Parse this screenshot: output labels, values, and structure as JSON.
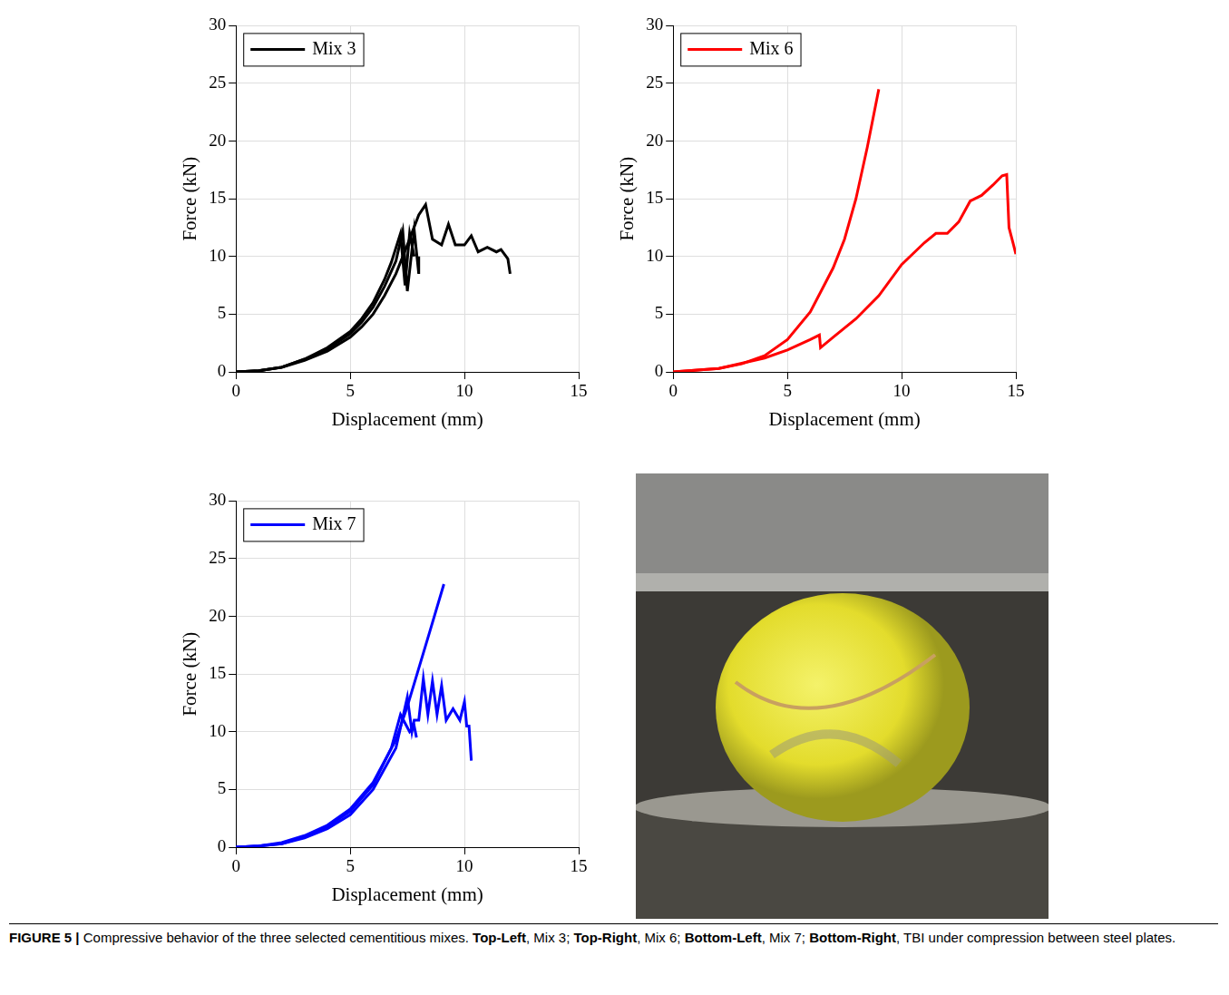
{
  "chart_data": [
    {
      "type": "line",
      "x_label": "Displacement (mm)",
      "y_label": "Force (kN)",
      "xlim": [
        0,
        15
      ],
      "xticks": [
        0,
        5,
        10,
        15
      ],
      "ylim": [
        0,
        30
      ],
      "yticks": [
        0,
        5,
        10,
        15,
        20,
        25,
        30
      ],
      "grid": true,
      "legend": "upper left",
      "series": [
        {
          "name": "Mix 3",
          "color": "#000000",
          "x": [
            0,
            1,
            2,
            3,
            4,
            5,
            5.5,
            6,
            6.5,
            7,
            7.5,
            8,
            8.3,
            8.6,
            9,
            9.3,
            9.6,
            10,
            10.3,
            10.6,
            11,
            11.4,
            11.6,
            11.9,
            12,
            null,
            0,
            1,
            2,
            3,
            4,
            5,
            5.5,
            6,
            6.5,
            7,
            7.3,
            7.5,
            7.8,
            8,
            8,
            null,
            0,
            1,
            2,
            3,
            4,
            5,
            5.5,
            6,
            6.5,
            6.8,
            7.2,
            7.4,
            7.6,
            7.8
          ],
          "values": [
            0,
            0.1,
            0.4,
            1,
            1.8,
            3,
            3.9,
            5,
            6.6,
            8.5,
            11,
            13.6,
            14.5,
            11.5,
            11,
            12.8,
            11,
            11,
            11.8,
            10.4,
            10.8,
            10.4,
            10.6,
            9.8,
            8.5,
            null,
            0,
            0.1,
            0.4,
            1.1,
            2,
            3.3,
            4.3,
            5.6,
            7.4,
            9.6,
            12.2,
            7,
            12.3,
            8.5,
            10,
            null,
            0,
            0.1,
            0.4,
            1.1,
            2.1,
            3.5,
            4.6,
            6,
            8,
            9.5,
            12,
            7.5,
            12,
            10
          ]
        }
      ]
    },
    {
      "type": "line",
      "x_label": "Displacement (mm)",
      "y_label": "Force (kN)",
      "xlim": [
        0,
        15
      ],
      "xticks": [
        0,
        5,
        10,
        15
      ],
      "ylim": [
        0,
        30
      ],
      "yticks": [
        0,
        5,
        10,
        15,
        20,
        25,
        30
      ],
      "grid": true,
      "legend": "upper left",
      "series": [
        {
          "name": "Mix 6",
          "color": "#ff0000",
          "x": [
            0,
            2,
            3,
            4,
            5,
            6,
            7,
            7.5,
            8,
            8.5,
            9,
            null,
            0,
            2,
            4,
            5,
            6,
            6.4,
            6.45,
            7,
            8,
            9,
            10,
            11,
            11.5,
            12,
            12.5,
            13,
            13.5,
            14,
            14.4,
            14.6,
            14.7,
            14.9,
            15
          ],
          "values": [
            0,
            0.3,
            0.7,
            1.4,
            2.8,
            5.2,
            9,
            11.5,
            15,
            19.5,
            24.5,
            null,
            0,
            0.3,
            1.2,
            1.9,
            2.8,
            3.2,
            2.1,
            3,
            4.6,
            6.6,
            9.3,
            11.2,
            12,
            12,
            13,
            14.8,
            15.3,
            16.2,
            17,
            17.1,
            12.5,
            11,
            10.2
          ]
        }
      ]
    },
    {
      "type": "line",
      "x_label": "Displacement (mm)",
      "y_label": "Force (kN)",
      "xlim": [
        0,
        15
      ],
      "xticks": [
        0,
        5,
        10,
        15
      ],
      "ylim": [
        0,
        30
      ],
      "yticks": [
        0,
        5,
        10,
        15,
        20,
        25,
        30
      ],
      "grid": true,
      "legend": "upper left",
      "series": [
        {
          "name": "Mix 7",
          "color": "#0000ff",
          "x": [
            0,
            1,
            2,
            3,
            4,
            5,
            6,
            7,
            7.5,
            8,
            8.5,
            9.1,
            null,
            0,
            1,
            2,
            3,
            4,
            5,
            6,
            7,
            7.5,
            7.7,
            7.8,
            8,
            8.2,
            8.4,
            8.6,
            8.8,
            9,
            9.2,
            9.5,
            9.8,
            10,
            10.1,
            10.2,
            10.3,
            null,
            0,
            1,
            2,
            3,
            4,
            5,
            6,
            6.8,
            7.2,
            7.6,
            7.8,
            7.9
          ],
          "values": [
            0,
            0.1,
            0.4,
            1,
            1.9,
            3.3,
            5.6,
            9.3,
            12.2,
            15.5,
            18.8,
            22.8,
            null,
            0,
            0.1,
            0.3,
            0.8,
            1.6,
            2.8,
            5,
            8.6,
            13,
            10,
            11,
            11,
            14.6,
            11.5,
            14.4,
            11.5,
            14,
            11,
            12,
            11,
            12.6,
            10.5,
            10.5,
            7.5,
            null,
            0,
            0.1,
            0.3,
            0.9,
            1.8,
            3.1,
            5.4,
            8.6,
            11.5,
            10,
            10.5,
            9.5
          ]
        }
      ]
    }
  ],
  "caption": [
    {
      "text": "FIGURE 5 |",
      "bold": true
    },
    {
      "text": " Compressive behavior of the three selected cementitious mixes. ",
      "bold": false
    },
    {
      "text": "Top-Left",
      "bold": true
    },
    {
      "text": ", Mix 3; ",
      "bold": false
    },
    {
      "text": "Top-Right",
      "bold": true
    },
    {
      "text": ", Mix 6; ",
      "bold": false
    },
    {
      "text": "Bottom-Left",
      "bold": true
    },
    {
      "text": ", Mix 7; ",
      "bold": false
    },
    {
      "text": "Bottom-Right",
      "bold": true
    },
    {
      "text": ", TBI under compression between steel plates.",
      "bold": false
    }
  ]
}
